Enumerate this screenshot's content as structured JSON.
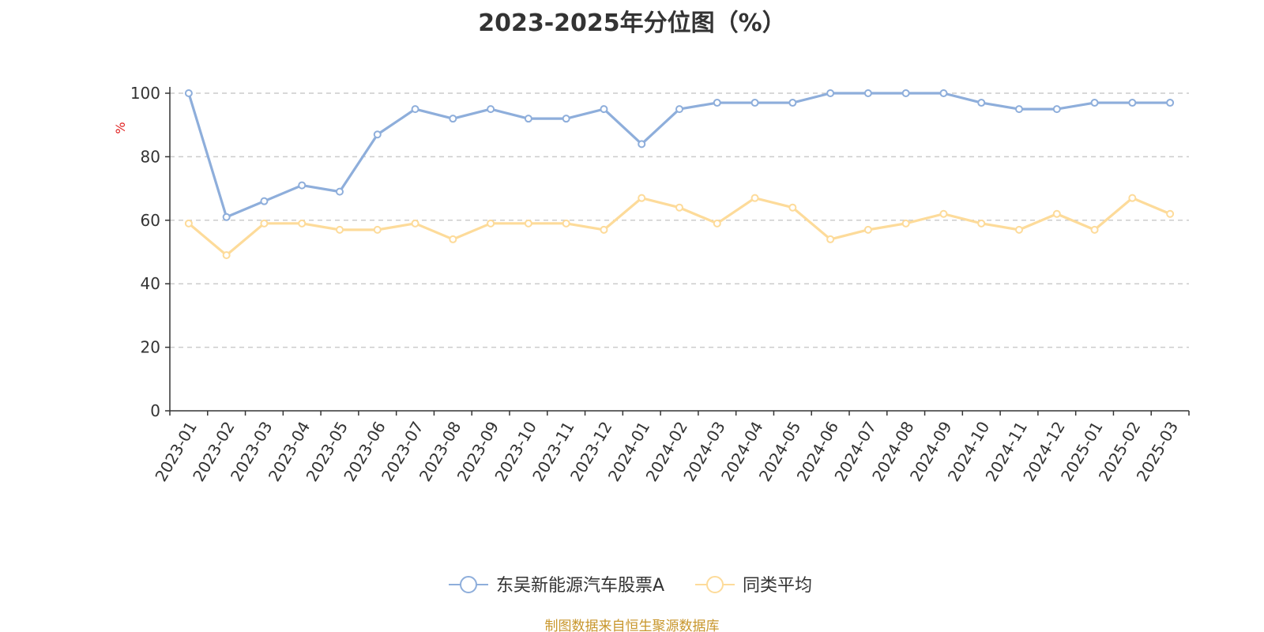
{
  "chart_data": {
    "type": "line",
    "title": "2023-2025年分位图（%）",
    "ylabel": "%",
    "xlabel": "",
    "ylim": [
      0,
      100
    ],
    "yticks": [
      0,
      20,
      40,
      60,
      80,
      100
    ],
    "grid": true,
    "legend_position": "bottom-center",
    "categories": [
      "2023-01",
      "2023-02",
      "2023-03",
      "2023-04",
      "2023-05",
      "2023-06",
      "2023-07",
      "2023-08",
      "2023-09",
      "2023-10",
      "2023-11",
      "2023-12",
      "2024-01",
      "2024-02",
      "2024-03",
      "2024-04",
      "2024-05",
      "2024-06",
      "2024-07",
      "2024-08",
      "2024-09",
      "2024-10",
      "2024-11",
      "2024-12",
      "2025-01",
      "2025-02",
      "2025-03"
    ],
    "series": [
      {
        "name": "东吴新能源汽车股票A",
        "color": "#8eaedb",
        "values": [
          100,
          61,
          66,
          71,
          69,
          87,
          95,
          92,
          95,
          92,
          92,
          95,
          84,
          95,
          97,
          97,
          97,
          100,
          100,
          100,
          100,
          97,
          95,
          95,
          97,
          97,
          97
        ]
      },
      {
        "name": "同类平均",
        "color": "#fddb9a",
        "values": [
          59,
          49,
          59,
          59,
          57,
          57,
          59,
          54,
          59,
          59,
          59,
          57,
          67,
          64,
          59,
          67,
          64,
          54,
          57,
          59,
          62,
          59,
          57,
          62,
          57,
          67,
          62
        ]
      }
    ]
  },
  "footer": {
    "source": "制图数据来自恒生聚源数据库"
  }
}
